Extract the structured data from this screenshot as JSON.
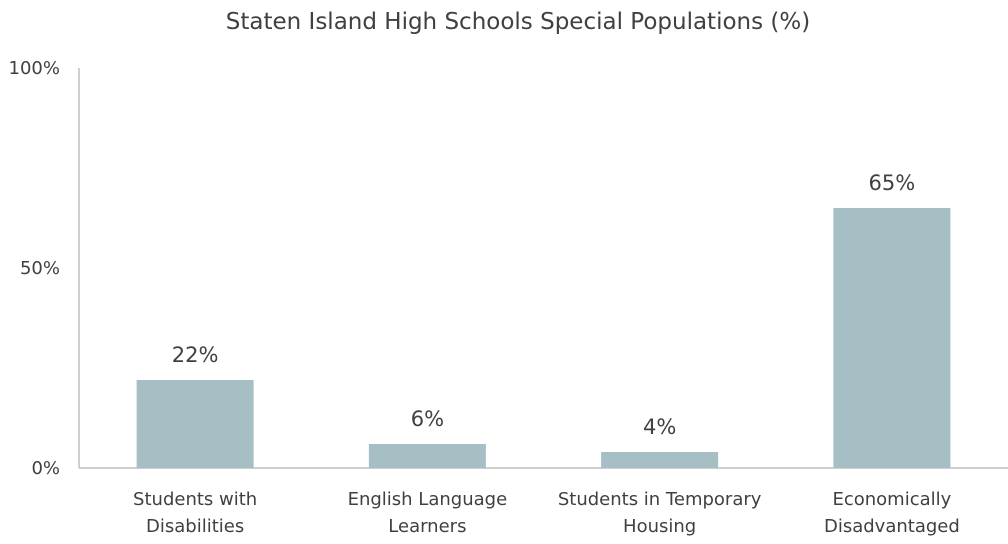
{
  "chart_data": {
    "type": "bar",
    "title": "Staten Island High Schools Special Populations (%)",
    "xlabel": "",
    "ylabel": "",
    "ylim": [
      0,
      100
    ],
    "yticks": [
      0,
      50,
      100
    ],
    "ytick_labels": [
      "0%",
      "50%",
      "100%"
    ],
    "categories": [
      [
        "Students with",
        "Disabilities"
      ],
      [
        "English Language",
        "Learners"
      ],
      [
        "Students in Temporary",
        "Housing"
      ],
      [
        "Economically",
        "Disadvantaged"
      ]
    ],
    "values": [
      22,
      6,
      4,
      65
    ],
    "data_labels": [
      "22%",
      "6%",
      "4%",
      "65%"
    ],
    "bar_color": "#a6bfc5",
    "grid": false,
    "legend": "none"
  }
}
